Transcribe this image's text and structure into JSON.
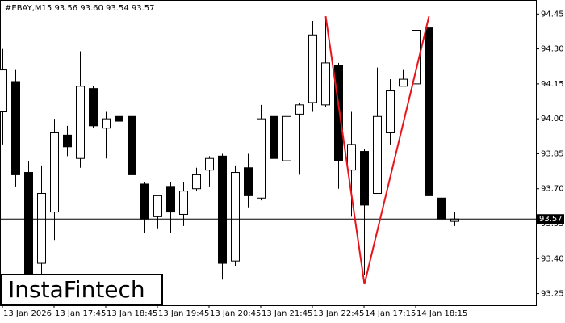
{
  "chart_data": {
    "type": "candlestick",
    "title": "#EBAY,M15  93.56 93.60 93.54 93.57",
    "categories": [
      "13 Jan 2026",
      null,
      null,
      null,
      "13 Jan 17:45",
      null,
      null,
      null,
      "13 Jan 18:45",
      null,
      null,
      null,
      "13 Jan 19:45",
      null,
      null,
      null,
      "13 Jan 20:45",
      null,
      null,
      null,
      "13 Jan 21:45",
      null,
      null,
      null,
      "13 Jan 22:45",
      null,
      null,
      null,
      "14 Jan 17:15",
      null,
      null,
      null,
      "14 Jan 18:15",
      null,
      null,
      null
    ],
    "open": [
      94.03,
      94.16,
      93.77,
      93.38,
      93.6,
      93.93,
      93.83,
      94.13,
      93.96,
      94.01,
      94.01,
      93.72,
      93.58,
      93.71,
      93.59,
      93.7,
      93.78,
      93.84,
      93.39,
      93.79,
      93.66,
      94.01,
      93.82,
      94.02,
      94.07,
      94.06,
      94.23,
      93.78,
      93.86,
      93.68,
      93.94,
      94.14,
      94.15,
      94.39,
      93.66,
      93.56
    ],
    "high": [
      94.3,
      94.21,
      93.82,
      93.8,
      94.0,
      93.97,
      94.29,
      94.14,
      94.03,
      94.06,
      94.01,
      93.73,
      93.67,
      93.73,
      93.73,
      93.79,
      93.84,
      93.85,
      93.8,
      93.85,
      94.06,
      94.05,
      94.1,
      94.07,
      94.42,
      94.44,
      94.24,
      94.03,
      93.87,
      94.22,
      94.17,
      94.21,
      94.42,
      94.44,
      93.77,
      93.6
    ],
    "low": [
      93.89,
      93.71,
      93.3,
      93.33,
      93.48,
      93.84,
      93.79,
      93.96,
      93.83,
      93.94,
      93.72,
      93.51,
      93.53,
      93.51,
      93.54,
      93.69,
      93.71,
      93.31,
      93.37,
      93.62,
      93.65,
      93.8,
      93.78,
      93.76,
      94.03,
      94.05,
      93.7,
      93.58,
      93.33,
      93.68,
      93.89,
      94.14,
      94.13,
      93.66,
      93.52,
      93.54
    ],
    "close": [
      94.21,
      93.76,
      93.31,
      93.68,
      93.94,
      93.88,
      94.14,
      93.97,
      94.0,
      93.99,
      93.76,
      93.57,
      93.67,
      93.6,
      93.69,
      93.76,
      93.83,
      93.38,
      93.77,
      93.67,
      94.0,
      93.83,
      94.01,
      94.06,
      94.36,
      94.24,
      93.82,
      93.89,
      93.63,
      94.01,
      94.12,
      94.17,
      94.38,
      93.67,
      93.57,
      93.57
    ],
    "ylim": [
      93.2,
      94.51
    ],
    "yticks": [
      {
        "value": 94.45,
        "label": "94.45"
      },
      {
        "value": 94.3,
        "label": "94.30"
      },
      {
        "value": 94.15,
        "label": "94.15"
      },
      {
        "value": 94.0,
        "label": "94.00"
      },
      {
        "value": 93.85,
        "label": "93.85"
      },
      {
        "value": 93.7,
        "label": "93.70"
      },
      {
        "value": 93.55,
        "label": "93.55"
      },
      {
        "value": 93.4,
        "label": "93.40"
      },
      {
        "value": 93.25,
        "label": "93.25"
      }
    ],
    "current_price": {
      "value": 93.57,
      "label": "93.57"
    },
    "pattern": {
      "color": "#e8141b",
      "points": [
        {
          "x": 25,
          "y": 94.44
        },
        {
          "x": 28,
          "y": 93.29
        },
        {
          "x": 33,
          "y": 94.44
        }
      ]
    },
    "logo": "InstaFintech"
  }
}
